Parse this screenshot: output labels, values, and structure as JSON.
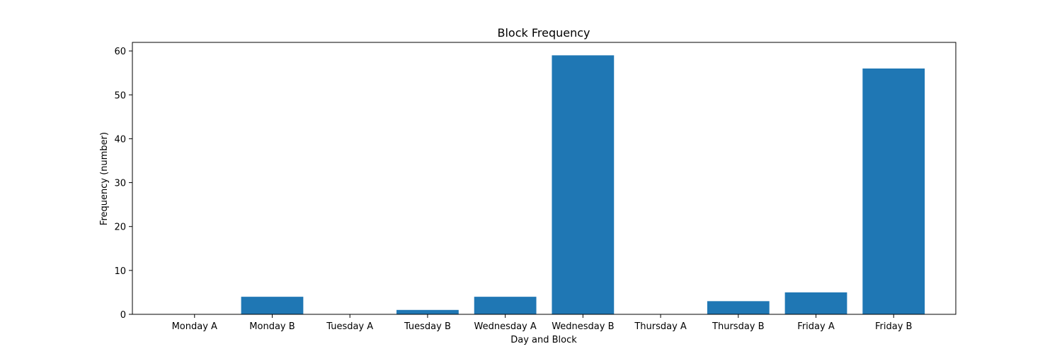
{
  "chart_data": {
    "type": "bar",
    "title": "Block Frequency",
    "xlabel": "Day and Block",
    "ylabel": "Frequency (number)",
    "categories": [
      "Monday A",
      "Monday B",
      "Tuesday A",
      "Tuesday B",
      "Wednesday A",
      "Wednesday B",
      "Thursday A",
      "Thursday B",
      "Friday A",
      "Friday B"
    ],
    "values": [
      0,
      4,
      0,
      1,
      4,
      59,
      0,
      3,
      5,
      56
    ],
    "ylim": [
      0,
      61.95
    ],
    "yticks": [
      "0",
      "10",
      "20",
      "30",
      "40",
      "50",
      "60"
    ],
    "grid": false,
    "legend": "none",
    "bar_color": "#1f77b4"
  }
}
